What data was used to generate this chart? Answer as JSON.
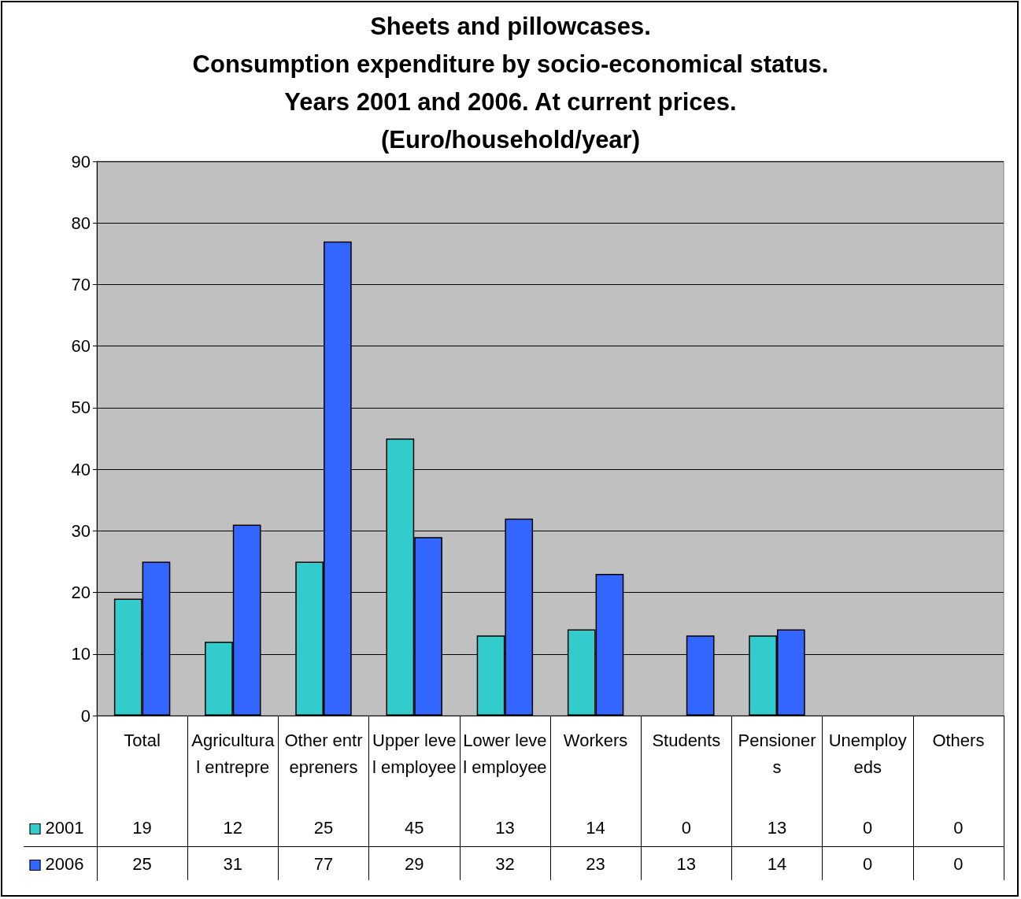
{
  "chart_data": {
    "type": "bar",
    "title": "Sheets and pillowcases.\nConsumption expenditure by socio-economical status.\nYears 2001 and 2006. At current prices.\n(Euro/household/year)",
    "categories": [
      "Total",
      "Agricultural entrepre",
      "Other entrepreners",
      "Upper level employee",
      "Lower level employee",
      "Workers",
      "Students",
      "Pensioners",
      "Unemployeds",
      "Others"
    ],
    "series": [
      {
        "name": "2001",
        "color": "#33cccc",
        "values": [
          19,
          12,
          25,
          45,
          13,
          14,
          0,
          13,
          0,
          0
        ]
      },
      {
        "name": "2006",
        "color": "#3366ff",
        "values": [
          25,
          31,
          77,
          29,
          32,
          23,
          13,
          14,
          0,
          0
        ]
      }
    ],
    "ylim": [
      0,
      90
    ],
    "yticks": [
      0,
      10,
      20,
      30,
      40,
      50,
      60,
      70,
      80,
      90
    ],
    "grid": "y",
    "legend": "bottom",
    "data_labels": true
  }
}
